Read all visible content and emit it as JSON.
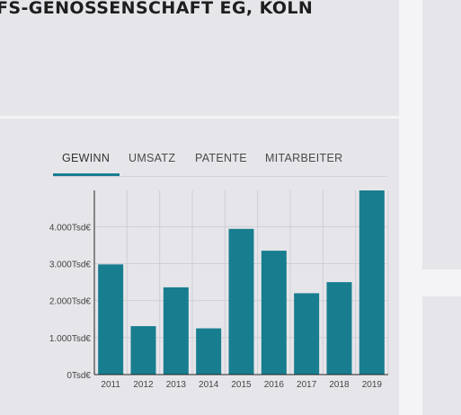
{
  "header": {
    "company_name": "FS-GENOSSENSCHAFT EG, KÖLN"
  },
  "tabs": [
    {
      "label": "GEWINN",
      "active": true
    },
    {
      "label": "UMSATZ",
      "active": false
    },
    {
      "label": "PATENTE",
      "active": false
    },
    {
      "label": "MITARBEITER",
      "active": false
    }
  ],
  "colors": {
    "accent": "#187e8f",
    "panel": "#e6e5ea",
    "background": "#f4f4f6"
  },
  "chart_data": {
    "type": "bar",
    "title": "",
    "xlabel": "",
    "ylabel": "",
    "categories": [
      "2011",
      "2012",
      "2013",
      "2014",
      "2015",
      "2016",
      "2017",
      "2018",
      "2019"
    ],
    "values": [
      2980,
      1310,
      2360,
      1250,
      3940,
      3350,
      2200,
      2500,
      4980
    ],
    "ylim": [
      0,
      4980
    ],
    "yticks": [
      0,
      1000,
      2000,
      3000,
      4000
    ],
    "ytick_labels": [
      "0Tsd€",
      "1.000Tsd€",
      "2.000Tsd€",
      "3.000Tsd€",
      "4.000Tsd€"
    ],
    "unit": "Tsd€",
    "grid": true,
    "color": "#187e8f"
  }
}
